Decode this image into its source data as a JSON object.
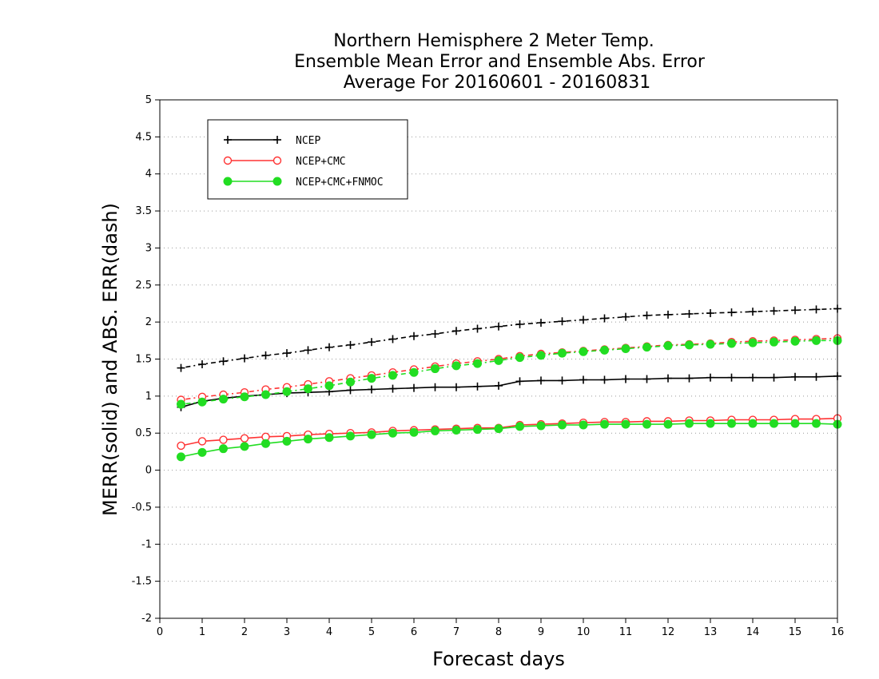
{
  "chart_data": {
    "type": "line",
    "title_lines": [
      "Northern Hemisphere 2 Meter Temp.",
      "Ensemble Mean Error and Ensemble Abs. Error",
      "Average For 20160601 - 20160831"
    ],
    "xlabel": "Forecast days",
    "ylabel": "MERR(solid) and ABS. ERR(dash)",
    "xlim": [
      0,
      16
    ],
    "ylim": [
      -2,
      5
    ],
    "x_ticks": [
      0,
      1,
      2,
      3,
      4,
      5,
      6,
      7,
      8,
      9,
      10,
      11,
      12,
      13,
      14,
      15,
      16
    ],
    "x_tick_labels": [
      "0",
      "1",
      "2",
      "3",
      "4",
      "5",
      "6",
      "7",
      "8",
      "9",
      "10",
      "11",
      "12",
      "13",
      "14",
      "15",
      "16"
    ],
    "y_ticks": [
      -2,
      -1.5,
      -1,
      -0.5,
      0,
      0.5,
      1,
      1.5,
      2,
      2.5,
      3,
      3.5,
      4,
      4.5,
      5
    ],
    "y_tick_labels": [
      "-2",
      "-1.5",
      "-1",
      "-0.5",
      "0",
      "0.5",
      "1",
      "1.5",
      "2",
      "2.5",
      "3",
      "3.5",
      "4",
      "4.5",
      "5"
    ],
    "grid": true,
    "legend_position": "top-left",
    "x": [
      0.5,
      1,
      1.5,
      2,
      2.5,
      3,
      3.5,
      4,
      4.5,
      5,
      5.5,
      6,
      6.5,
      7,
      7.5,
      8,
      8.5,
      9,
      9.5,
      10,
      10.5,
      11,
      11.5,
      12,
      12.5,
      13,
      13.5,
      14,
      14.5,
      15,
      15.5,
      16
    ],
    "series": [
      {
        "name": "NCEP",
        "color": "#000000",
        "marker": "plus",
        "merr": [
          0.85,
          0.93,
          0.97,
          1.0,
          1.02,
          1.04,
          1.05,
          1.06,
          1.08,
          1.09,
          1.1,
          1.11,
          1.12,
          1.12,
          1.13,
          1.14,
          1.2,
          1.21,
          1.21,
          1.22,
          1.22,
          1.23,
          1.23,
          1.24,
          1.24,
          1.25,
          1.25,
          1.25,
          1.25,
          1.26,
          1.26,
          1.27
        ],
        "abs_err": [
          1.38,
          1.43,
          1.47,
          1.51,
          1.55,
          1.58,
          1.62,
          1.66,
          1.69,
          1.73,
          1.77,
          1.81,
          1.84,
          1.88,
          1.91,
          1.94,
          1.97,
          1.99,
          2.01,
          2.03,
          2.05,
          2.07,
          2.09,
          2.1,
          2.11,
          2.12,
          2.13,
          2.14,
          2.15,
          2.16,
          2.17,
          2.18
        ]
      },
      {
        "name": "NCEP+CMC",
        "color": "#ff3333",
        "marker": "open-circle",
        "merr": [
          0.33,
          0.39,
          0.41,
          0.43,
          0.45,
          0.46,
          0.48,
          0.49,
          0.5,
          0.51,
          0.53,
          0.54,
          0.55,
          0.56,
          0.57,
          0.57,
          0.61,
          0.62,
          0.63,
          0.64,
          0.65,
          0.65,
          0.66,
          0.66,
          0.67,
          0.67,
          0.68,
          0.68,
          0.68,
          0.69,
          0.69,
          0.7
        ],
        "abs_err": [
          0.95,
          0.99,
          1.02,
          1.05,
          1.09,
          1.12,
          1.16,
          1.2,
          1.24,
          1.28,
          1.32,
          1.36,
          1.4,
          1.44,
          1.47,
          1.5,
          1.54,
          1.57,
          1.59,
          1.61,
          1.63,
          1.65,
          1.67,
          1.69,
          1.7,
          1.71,
          1.73,
          1.74,
          1.75,
          1.76,
          1.77,
          1.78
        ]
      },
      {
        "name": "NCEP+CMC+FNMOC",
        "color": "#22dd22",
        "marker": "filled-circle",
        "merr": [
          0.18,
          0.24,
          0.29,
          0.32,
          0.36,
          0.39,
          0.42,
          0.44,
          0.46,
          0.48,
          0.5,
          0.51,
          0.53,
          0.54,
          0.55,
          0.56,
          0.59,
          0.6,
          0.61,
          0.61,
          0.62,
          0.62,
          0.62,
          0.62,
          0.63,
          0.63,
          0.63,
          0.63,
          0.63,
          0.63,
          0.63,
          0.62
        ],
        "abs_err": [
          0.89,
          0.92,
          0.96,
          0.99,
          1.02,
          1.06,
          1.1,
          1.14,
          1.19,
          1.24,
          1.28,
          1.32,
          1.37,
          1.41,
          1.44,
          1.48,
          1.52,
          1.55,
          1.58,
          1.6,
          1.62,
          1.64,
          1.66,
          1.68,
          1.69,
          1.7,
          1.71,
          1.72,
          1.73,
          1.74,
          1.75,
          1.75
        ]
      }
    ]
  }
}
